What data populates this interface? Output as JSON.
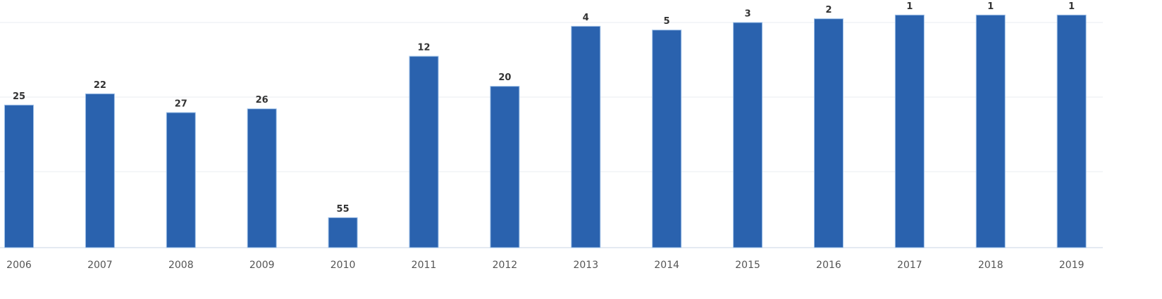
{
  "chart_data": {
    "type": "bar",
    "categories": [
      "2006",
      "2007",
      "2008",
      "2009",
      "2010",
      "2011",
      "2012",
      "2013",
      "2014",
      "2015",
      "2016",
      "2017",
      "2018",
      "2019"
    ],
    "values": [
      25,
      22,
      27,
      26,
      55,
      12,
      20,
      4,
      5,
      3,
      2,
      1,
      1,
      1
    ],
    "color": "#2a62ae",
    "ylim": [
      63,
      0
    ]
  }
}
